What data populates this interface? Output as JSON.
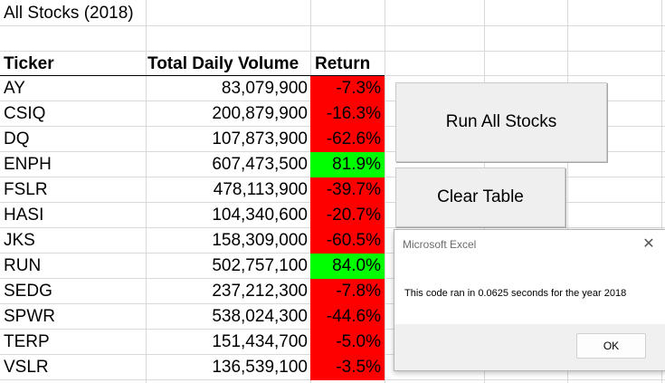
{
  "sheet": {
    "title": "All Stocks (2018)",
    "headers": {
      "ticker": "Ticker",
      "volume": "Total Daily Volume",
      "return": "Return"
    },
    "rows": [
      {
        "ticker": "AY",
        "volume": "83,079,900",
        "return": "-7.3%",
        "status": "negative"
      },
      {
        "ticker": "CSIQ",
        "volume": "200,879,900",
        "return": "-16.3%",
        "status": "negative"
      },
      {
        "ticker": "DQ",
        "volume": "107,873,900",
        "return": "-62.6%",
        "status": "negative"
      },
      {
        "ticker": "ENPH",
        "volume": "607,473,500",
        "return": "81.9%",
        "status": "positive"
      },
      {
        "ticker": "FSLR",
        "volume": "478,113,900",
        "return": "-39.7%",
        "status": "negative"
      },
      {
        "ticker": "HASI",
        "volume": "104,340,600",
        "return": "-20.7%",
        "status": "negative"
      },
      {
        "ticker": "JKS",
        "volume": "158,309,000",
        "return": "-60.5%",
        "status": "negative"
      },
      {
        "ticker": "RUN",
        "volume": "502,757,100",
        "return": "84.0%",
        "status": "positive"
      },
      {
        "ticker": "SEDG",
        "volume": "237,212,300",
        "return": "-7.8%",
        "status": "negative"
      },
      {
        "ticker": "SPWR",
        "volume": "538,024,300",
        "return": "-44.6%",
        "status": "negative"
      },
      {
        "ticker": "TERP",
        "volume": "151,434,700",
        "return": "-5.0%",
        "status": "negative"
      },
      {
        "ticker": "VSLR",
        "volume": "136,539,100",
        "return": "-3.5%",
        "status": "negative"
      }
    ]
  },
  "buttons": {
    "run_all": "Run All Stocks",
    "clear_table": "Clear Table"
  },
  "dialog": {
    "title": "Microsoft Excel",
    "message": "This code ran in 0.0625 seconds for the year 2018",
    "ok_label": "OK"
  },
  "colors": {
    "negative": "#ff0000",
    "positive": "#00ff00",
    "gridline": "#d9d9d9"
  },
  "icons": {
    "close": "close-icon"
  }
}
